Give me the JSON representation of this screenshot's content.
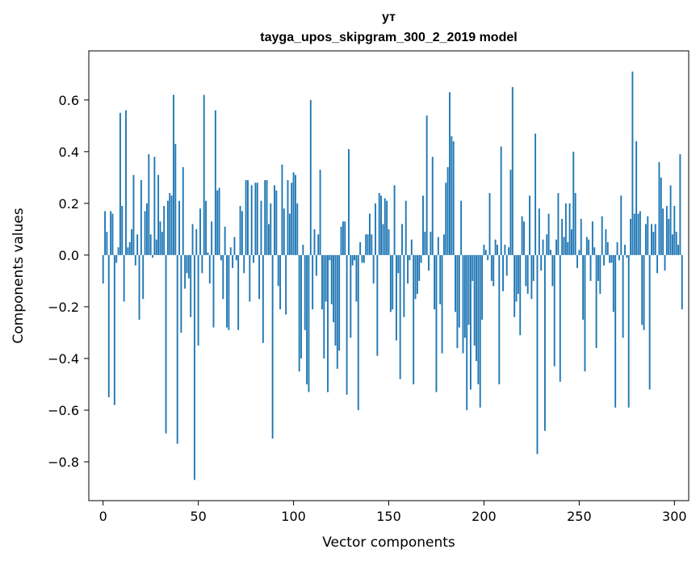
{
  "chart_data": {
    "type": "bar",
    "title": "ут",
    "subtitle": "tayga_upos_skipgram_300_2_2019 model",
    "xlabel": "Vector components",
    "ylabel": "Components values",
    "xlim": [
      -7.5,
      307.5
    ],
    "ylim": [
      -0.95,
      0.79
    ],
    "xticks": [
      0,
      50,
      100,
      150,
      200,
      250,
      300
    ],
    "yticks": [
      -0.8,
      -0.6,
      -0.4,
      -0.2,
      0.0,
      0.2,
      0.4,
      0.6
    ],
    "ytick_labels": [
      "−0.8",
      "−0.6",
      "−0.4",
      "−0.2",
      "0.0",
      "0.2",
      "0.4",
      "0.6"
    ],
    "bar_color": "#1f77b4",
    "x_start": 0,
    "values": [
      -0.11,
      0.17,
      0.09,
      -0.55,
      0.17,
      0.16,
      -0.58,
      -0.03,
      0.03,
      0.55,
      0.19,
      -0.18,
      0.56,
      0.03,
      0.05,
      0.1,
      0.31,
      -0.04,
      0.08,
      -0.25,
      0.29,
      -0.17,
      0.17,
      0.2,
      0.39,
      0.08,
      -0.01,
      0.38,
      0.06,
      0.31,
      0.13,
      0.09,
      0.19,
      -0.69,
      0.21,
      0.24,
      0.23,
      0.62,
      0.43,
      -0.73,
      0.21,
      -0.3,
      0.34,
      -0.13,
      -0.07,
      -0.09,
      -0.24,
      0.12,
      -0.87,
      0.1,
      -0.35,
      0.18,
      -0.07,
      0.62,
      0.21,
      0.01,
      -0.11,
      0.13,
      -0.28,
      0.56,
      0.25,
      0.26,
      -0.02,
      -0.17,
      0.11,
      -0.28,
      -0.29,
      0.03,
      -0.05,
      0.07,
      -0.02,
      -0.29,
      0.19,
      0.17,
      -0.07,
      0.29,
      0.29,
      -0.18,
      0.27,
      -0.03,
      0.28,
      0.28,
      -0.17,
      0.21,
      -0.34,
      0.29,
      0.29,
      0.12,
      0.2,
      -0.71,
      0.27,
      0.25,
      -0.12,
      -0.21,
      0.35,
      0.18,
      -0.23,
      0.29,
      0.16,
      0.28,
      0.32,
      0.31,
      0.2,
      -0.45,
      -0.4,
      0.04,
      -0.29,
      -0.5,
      -0.53,
      0.6,
      -0.21,
      0.1,
      -0.08,
      0.08,
      0.33,
      -0.21,
      -0.4,
      -0.18,
      -0.53,
      -0.02,
      -0.19,
      -0.26,
      -0.35,
      -0.44,
      -0.37,
      0.11,
      0.13,
      0.13,
      -0.54,
      0.41,
      -0.32,
      -0.04,
      -0.02,
      -0.18,
      -0.6,
      0.05,
      -0.03,
      -0.03,
      0.08,
      0.08,
      0.16,
      0.08,
      -0.11,
      0.2,
      -0.39,
      0.24,
      0.23,
      0.12,
      0.22,
      0.21,
      0.1,
      -0.22,
      -0.21,
      0.27,
      -0.33,
      -0.07,
      -0.48,
      0.12,
      -0.24,
      0.21,
      -0.11,
      -0.02,
      0.06,
      -0.5,
      -0.17,
      -0.15,
      -0.1,
      -0.03,
      0.23,
      0.09,
      0.54,
      -0.06,
      0.09,
      0.38,
      -0.21,
      -0.53,
      0.07,
      -0.19,
      -0.38,
      0.08,
      0.28,
      0.34,
      0.63,
      0.46,
      0.44,
      -0.22,
      -0.36,
      -0.28,
      0.21,
      -0.38,
      -0.32,
      -0.6,
      -0.27,
      -0.52,
      -0.1,
      -0.35,
      -0.41,
      -0.5,
      -0.59,
      -0.25,
      0.04,
      0.02,
      -0.02,
      0.24,
      -0.1,
      -0.12,
      0.06,
      0.04,
      -0.5,
      0.42,
      -0.14,
      0.04,
      -0.08,
      0.03,
      0.33,
      0.65,
      -0.24,
      -0.18,
      -0.15,
      -0.31,
      0.15,
      0.13,
      -0.12,
      -0.15,
      0.23,
      -0.17,
      -0.1,
      0.47,
      -0.77,
      0.18,
      -0.06,
      0.06,
      -0.68,
      0.08,
      0.16,
      0.02,
      -0.12,
      -0.43,
      0.06,
      0.24,
      -0.49,
      0.14,
      0.07,
      0.2,
      0.05,
      0.2,
      0.1,
      0.4,
      0.24,
      -0.05,
      0.02,
      0.14,
      -0.25,
      -0.45,
      0.07,
      0.06,
      -0.1,
      0.13,
      0.03,
      -0.36,
      -0.1,
      -0.15,
      0.15,
      -0.04,
      0.1,
      0.05,
      -0.03,
      -0.03,
      -0.22,
      -0.59,
      0.05,
      -0.02,
      0.23,
      -0.32,
      0.04,
      -0.01,
      -0.59,
      0.14,
      0.71,
      0.16,
      0.44,
      0.16,
      0.17,
      -0.27,
      -0.29,
      0.12,
      0.15,
      -0.52,
      0.12,
      0.09,
      0.12,
      -0.07,
      0.36,
      0.3,
      0.18,
      -0.06,
      0.19,
      0.14,
      0.27,
      0.08,
      0.19,
      0.09,
      0.04,
      0.39,
      -0.21
    ]
  }
}
